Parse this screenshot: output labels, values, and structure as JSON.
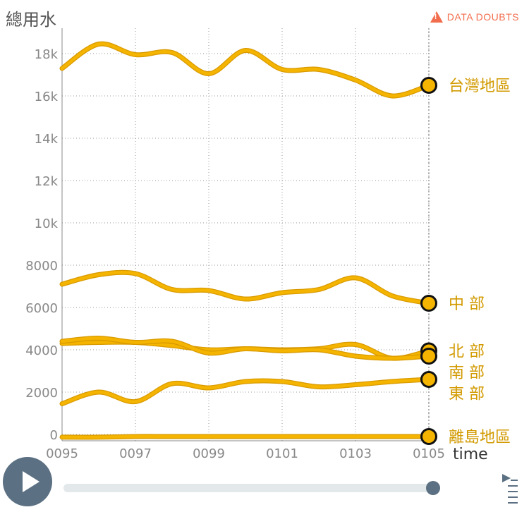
{
  "header": {
    "y_axis_title": "總用水",
    "data_doubts_label": "DATA DOUBTS"
  },
  "chart_data": {
    "type": "line",
    "title": "",
    "ylabel": "總用水",
    "xlabel": "time",
    "x": [
      "0095",
      "0096",
      "0097",
      "0098",
      "0099",
      "0100",
      "0101",
      "0102",
      "0103",
      "0104",
      "0105"
    ],
    "x_ticks": [
      "0095",
      "0097",
      "0099",
      "0101",
      "0103",
      "0105"
    ],
    "y_ticks": [
      0,
      2000,
      4000,
      6000,
      8000,
      10000,
      12000,
      14000,
      16000,
      18000
    ],
    "y_tick_labels": [
      "0",
      "2000",
      "4000",
      "6000",
      "8000",
      "10k",
      "12k",
      "14k",
      "16k",
      "18k"
    ],
    "ylim": [
      -300,
      19200
    ],
    "grid": true,
    "series": [
      {
        "name": "台灣地區",
        "values": [
          17300,
          18450,
          17950,
          18050,
          17050,
          18150,
          17250,
          17250,
          16750,
          16000,
          16500
        ]
      },
      {
        "name": "中 部",
        "values": [
          7100,
          7550,
          7600,
          6850,
          6800,
          6400,
          6700,
          6850,
          7400,
          6550,
          6200
        ]
      },
      {
        "name": "北 部",
        "values": [
          4300,
          4350,
          4350,
          4200,
          4000,
          4050,
          4000,
          4050,
          4250,
          3600,
          3950
        ]
      },
      {
        "name": "南 部",
        "values": [
          4400,
          4550,
          4350,
          4400,
          3850,
          4050,
          3950,
          4000,
          3700,
          3600,
          3700
        ]
      },
      {
        "name": "東 部",
        "values": [
          1450,
          2000,
          1550,
          2400,
          2200,
          2500,
          2500,
          2250,
          2350,
          2500,
          2600
        ]
      },
      {
        "name": "離島地區",
        "values": [
          -130,
          -130,
          -100,
          -100,
          -100,
          -100,
          -100,
          -100,
          -100,
          -100,
          -100
        ]
      }
    ],
    "colors": {
      "line": "#f4b400",
      "line_edge": "#d99a00",
      "marker_fill": "#f4b400",
      "marker_stroke": "#111111",
      "grid": "#9a9a9a",
      "axis": "#888888",
      "label": "#d29a00"
    }
  },
  "controls": {
    "play_icon": "play-icon",
    "time_label": "time"
  }
}
